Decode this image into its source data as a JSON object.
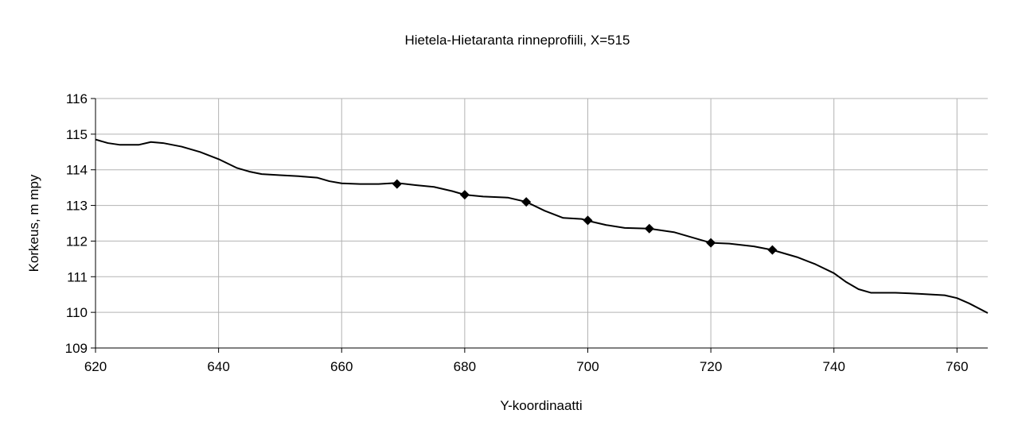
{
  "chart_data": {
    "type": "line",
    "title": "Hietela-Hietaranta rinneprofiili, X=515",
    "x_label": "Y-koordinaatti",
    "y_label": "Korkeus, m mpy",
    "xlim": [
      620,
      765
    ],
    "xticks": [
      620,
      640,
      660,
      680,
      700,
      720,
      740,
      760
    ],
    "ylim": [
      109,
      116
    ],
    "yticks": [
      109,
      110,
      111,
      112,
      113,
      114,
      115,
      116
    ],
    "grid": true,
    "series": [
      {
        "color": "#000000",
        "marker": "none",
        "x": [
          620,
          622,
          624,
          627,
          629,
          631,
          634,
          637,
          640,
          643,
          645,
          647,
          650,
          653,
          656,
          658,
          660,
          663,
          666,
          669,
          672,
          675,
          678,
          680,
          683,
          687,
          690,
          693,
          696,
          699,
          700,
          703,
          706,
          710,
          714,
          717,
          720,
          723,
          727,
          730,
          734,
          737,
          740,
          742,
          744,
          746,
          750,
          754,
          758,
          760,
          762,
          765
        ],
        "values": [
          114.85,
          114.75,
          114.7,
          114.7,
          114.78,
          114.75,
          114.65,
          114.5,
          114.3,
          114.05,
          113.95,
          113.88,
          113.85,
          113.82,
          113.78,
          113.68,
          113.62,
          113.6,
          113.6,
          113.63,
          113.57,
          113.52,
          113.4,
          113.3,
          113.25,
          113.22,
          113.1,
          112.85,
          112.65,
          112.62,
          112.57,
          112.45,
          112.37,
          112.35,
          112.25,
          112.1,
          111.95,
          111.93,
          111.85,
          111.75,
          111.55,
          111.35,
          111.1,
          110.85,
          110.65,
          110.55,
          110.55,
          110.52,
          110.48,
          110.4,
          110.25,
          109.98
        ]
      },
      {
        "color": "#000000",
        "marker": "diamond",
        "x": [
          669,
          680,
          690,
          700,
          710,
          720,
          730
        ],
        "values": [
          113.6,
          113.3,
          113.1,
          112.58,
          112.35,
          111.95,
          111.75
        ]
      }
    ]
  }
}
